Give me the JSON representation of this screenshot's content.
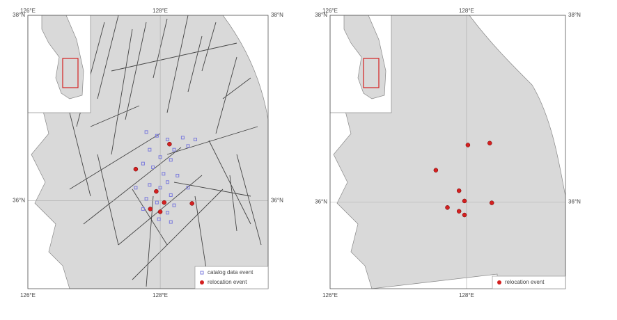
{
  "panels": [
    {
      "lonlim": [
        126,
        129.63
      ],
      "latlim": [
        35.05,
        38
      ],
      "lon_ticks": [
        {
          "value": 126,
          "label": "126°E"
        },
        {
          "value": 128,
          "label": "128°E"
        }
      ],
      "lat_ticks": [
        {
          "value": 38,
          "label": "38°N"
        },
        {
          "value": 36,
          "label": "36°N"
        }
      ],
      "layers": [
        {
          "name": "catalog data event",
          "color": "#7b7bdc",
          "lon": [
            127.79,
            127.95,
            128.11,
            128.34,
            128.42,
            128.21,
            127.84,
            128.0,
            128.16,
            127.74,
            127.89,
            128.05,
            128.26,
            128.11,
            127.84,
            128.0,
            128.16,
            127.79,
            127.95,
            128.21,
            127.74,
            128.11,
            127.98,
            128.16,
            127.63,
            128.42,
            128.53
          ],
          "lat": [
            36.74,
            36.7,
            36.66,
            36.68,
            36.59,
            36.55,
            36.55,
            36.47,
            36.44,
            36.4,
            36.36,
            36.29,
            36.27,
            36.2,
            36.17,
            36.14,
            36.06,
            36.02,
            35.98,
            35.95,
            35.91,
            35.87,
            35.8,
            35.77,
            36.14,
            36.14,
            36.66
          ]
        },
        {
          "name": "relocation event",
          "color": "#d42020",
          "lon": [
            128.14,
            127.63,
            127.94,
            128.06,
            127.85,
            128.0,
            128.48
          ],
          "lat": [
            36.61,
            36.34,
            36.1,
            35.98,
            35.91,
            35.88,
            35.97
          ]
        }
      ]
    },
    {
      "lonlim": [
        126,
        129.45
      ],
      "latlim": [
        35.07,
        38
      ],
      "lon_ticks": [
        {
          "value": 126,
          "label": "126°E"
        },
        {
          "value": 128,
          "label": "128°E"
        }
      ],
      "lat_ticks": [
        {
          "value": 38,
          "label": "38°N"
        },
        {
          "value": 36,
          "label": "36°N"
        }
      ],
      "layers": [
        {
          "name": "relocation event",
          "color": "#d42020",
          "lon": [
            128.02,
            128.34,
            127.55,
            127.89,
            127.97,
            128.37,
            127.72,
            127.89,
            127.97
          ],
          "lat": [
            36.61,
            36.63,
            36.34,
            36.12,
            36.01,
            35.99,
            35.94,
            35.9,
            35.86
          ]
        }
      ]
    }
  ]
}
